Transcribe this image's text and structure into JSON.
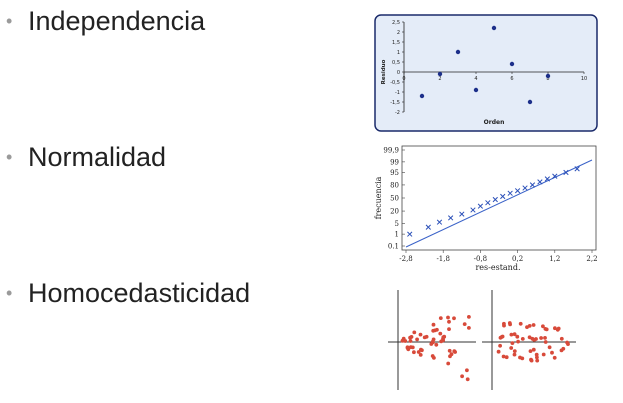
{
  "slide": {
    "bullets": [
      {
        "label": "Independencia"
      },
      {
        "label": "Normalidad"
      },
      {
        "label": "Homocedasticidad"
      }
    ]
  },
  "chart_data": [
    {
      "type": "scatter",
      "xlabel": "Orden",
      "ylabel": "Residuo",
      "xlim": [
        0,
        10
      ],
      "ylim": [
        -2,
        2.5
      ],
      "xticks": [
        "0",
        "2",
        "4",
        "6",
        "8",
        "10"
      ],
      "yticks": [
        "2,5",
        "2",
        "1,5",
        "1",
        "0,5",
        "0",
        "-0,5",
        "-1",
        "-1,5",
        "-2"
      ],
      "x": [
        1,
        2,
        3,
        4,
        5,
        6,
        7,
        8
      ],
      "y": [
        -1.2,
        -0.1,
        1.0,
        -0.9,
        2.2,
        0.4,
        -1.5,
        -0.2
      ],
      "colors": {
        "panel": "#e4ecf8",
        "point": "#1c2f8a"
      }
    },
    {
      "type": "scatter",
      "xlabel": "res-estand.",
      "ylabel": "frecuencia",
      "xlim": [
        -2.8,
        2.2
      ],
      "yticks": [
        "99,9",
        "99",
        "95",
        "80",
        "50",
        "20",
        "5",
        "1",
        "0.1"
      ],
      "xticks": [
        "-2,8",
        "-1,8",
        "-0,8",
        "0,2",
        "1,2",
        "2,2"
      ],
      "x": [
        -2.7,
        -2.2,
        -1.9,
        -1.6,
        -1.3,
        -1.0,
        -0.8,
        -0.6,
        -0.4,
        -0.2,
        0.0,
        0.2,
        0.4,
        0.6,
        0.8,
        1.0,
        1.2,
        1.5,
        1.8
      ],
      "y": [
        1,
        3,
        6,
        10,
        15,
        22,
        30,
        38,
        46,
        54,
        62,
        68,
        74,
        80,
        85,
        89,
        92,
        95,
        97
      ],
      "colors": {
        "point": "#2a4fb8",
        "line": "#3a62c8"
      }
    },
    {
      "type": "scatter",
      "colors": {
        "point": "#d84a3a",
        "axis": "#333333"
      }
    }
  ]
}
